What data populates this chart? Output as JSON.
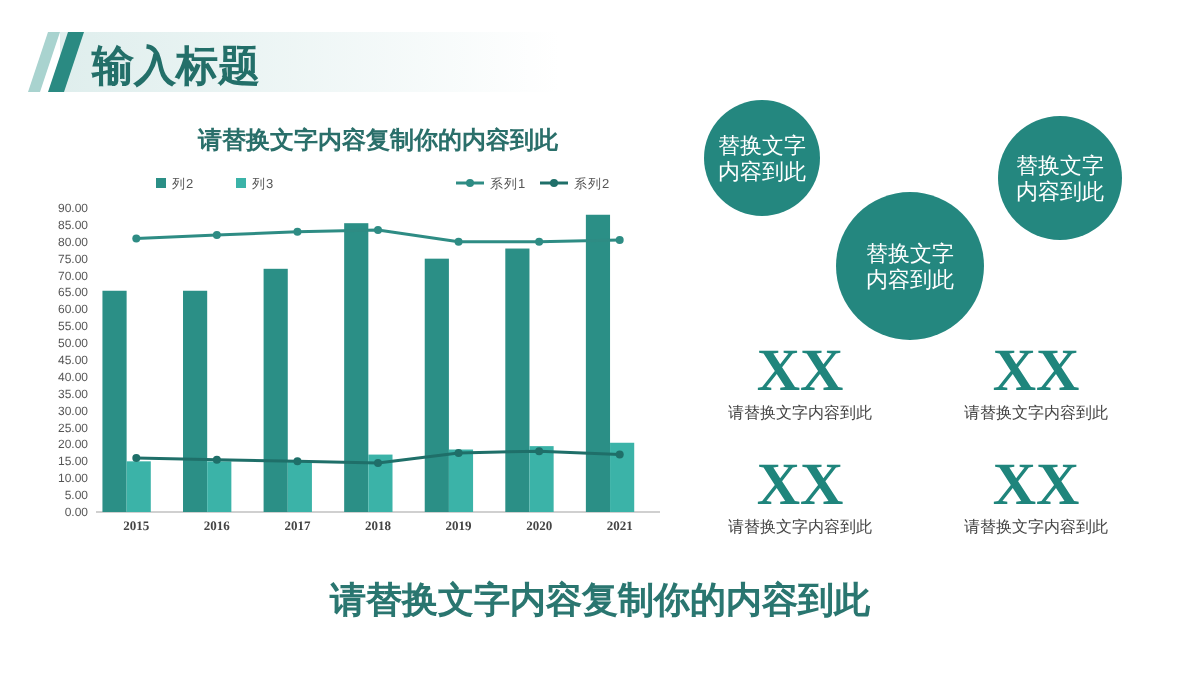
{
  "chart_data": [
    {
      "type": "bar",
      "title": "请替换文字内容复制你的内容到此",
      "categories": [
        "2015",
        "2016",
        "2017",
        "2018",
        "2019",
        "2020",
        "2021"
      ],
      "series": [
        {
          "name": "列2",
          "type": "bar",
          "color": "#2b8f86",
          "values": [
            65.5,
            65.5,
            72,
            85.5,
            75,
            78,
            88
          ]
        },
        {
          "name": "列3",
          "type": "bar",
          "color": "#3bb3a8",
          "values": [
            15,
            15,
            15,
            17,
            18.5,
            19.5,
            20.5
          ]
        },
        {
          "name": "系列1",
          "type": "line",
          "color": "#2e8c84",
          "values": [
            81,
            82,
            83,
            83.5,
            80,
            80,
            80.5
          ]
        },
        {
          "name": "系列2",
          "type": "line",
          "color": "#1f6f69",
          "values": [
            16,
            15.5,
            15,
            14.5,
            17.5,
            18,
            17
          ]
        }
      ],
      "ylim": [
        0,
        90
      ],
      "yticks": [
        {
          "value": 0,
          "label": "0.00"
        },
        {
          "value": 5,
          "label": "5.00"
        },
        {
          "value": 10,
          "label": "10.00"
        },
        {
          "value": 15,
          "label": "15.00"
        },
        {
          "value": 20,
          "label": "20.00"
        },
        {
          "value": 25,
          "label": "25.00"
        },
        {
          "value": 30,
          "label": "30.00"
        },
        {
          "value": 35,
          "label": "35.00"
        },
        {
          "value": 40,
          "label": "40.00"
        },
        {
          "value": 45,
          "label": "45.00"
        },
        {
          "value": 50,
          "label": "50.00"
        },
        {
          "value": 55,
          "label": "55.00"
        },
        {
          "value": 60,
          "label": "60.00"
        },
        {
          "value": 65,
          "label": "65.00"
        },
        {
          "value": 70,
          "label": "70.00"
        },
        {
          "value": 75,
          "label": "75.00"
        },
        {
          "value": 80,
          "label": "80.00"
        },
        {
          "value": 85,
          "label": "85.00"
        },
        {
          "value": 90,
          "label": "90.00"
        }
      ],
      "marker": "circle",
      "legend": "top"
    },
    {
      "type": "other",
      "title": "输入标题",
      "annotations": [
        "替换文字内容到此",
        "替换文字内容到此",
        "替换文字内容到此",
        "XX",
        "请替换文字内容到此",
        "XX",
        "请替换文字内容到此",
        "XX",
        "请替换文字内容到此",
        "XX",
        "请替换文字内容到此",
        "请替换文字内容复制你的内容到此"
      ]
    }
  ]
}
